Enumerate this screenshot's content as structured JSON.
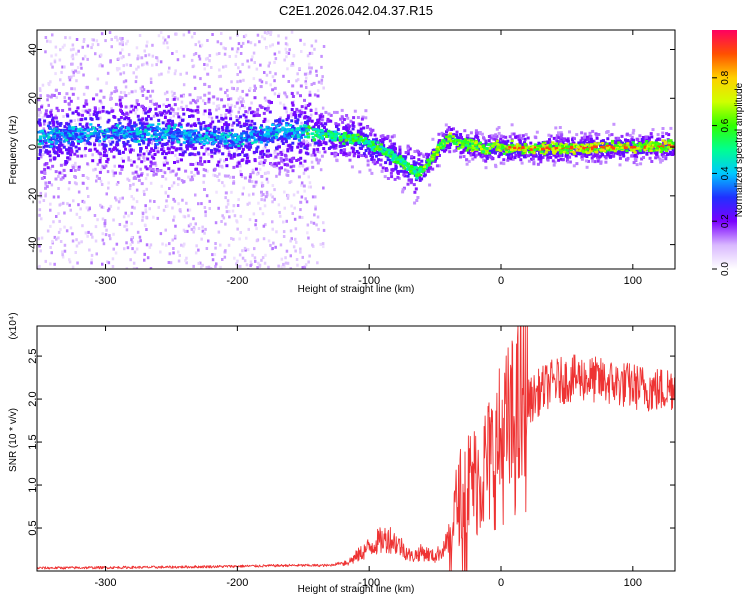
{
  "chart_data": [
    {
      "type": "heatmap",
      "title": "C2E1.2026.042.04.37.R15",
      "xlabel": "Height of straight line (km)",
      "ylabel": "Frequency (Hz)",
      "xlim": [
        -352,
        132
      ],
      "ylim": [
        -50,
        48
      ],
      "xticks": [
        -300,
        -200,
        -100,
        0,
        100
      ],
      "yticks": [
        -40,
        -20,
        0,
        20,
        40
      ],
      "colorbar": {
        "label": "Normalized spectral amplitude",
        "range": [
          0,
          1
        ],
        "ticks": [
          "0.0",
          "0.2",
          "0.4",
          "0.6",
          "0.8"
        ],
        "tick_values": [
          0.0,
          0.2,
          0.4,
          0.6,
          0.8
        ]
      },
      "ridge": {
        "x": [
          -350,
          -300,
          -250,
          -200,
          -170,
          -140,
          -110,
          -90,
          -75,
          -65,
          -60,
          -55,
          -50,
          -45,
          -40,
          -30,
          -20,
          -12,
          -5,
          0,
          50,
          132
        ],
        "freq_hz": [
          5,
          6,
          6,
          4,
          7,
          6,
          4,
          -1,
          -6,
          -10,
          -9,
          -5,
          -1,
          2,
          4,
          2,
          1,
          -1,
          1,
          0,
          0,
          1
        ]
      }
    },
    {
      "type": "line",
      "ylabel": "SNR (10 * v/v)",
      "xlabel": "Height of straight line (km)",
      "y_multiplier": "(x10⁴)",
      "xlim": [
        -352,
        132
      ],
      "ylim": [
        0,
        2.85
      ],
      "xticks": [
        -300,
        -200,
        -100,
        0,
        100
      ],
      "yticks": [
        0.5,
        1.0,
        1.5,
        2.0,
        2.5
      ],
      "ytick_labels": [
        "0.5",
        "1.0",
        "1.5",
        "2.0",
        "2.5"
      ],
      "color": "#ee3333",
      "envelope": {
        "x": [
          -352,
          -250,
          -200,
          -160,
          -130,
          -115,
          -105,
          -95,
          -85,
          -75,
          -68,
          -60,
          -50,
          -40,
          -35,
          -28,
          -20,
          -12,
          -5,
          2,
          10,
          20,
          30,
          40,
          60,
          80,
          100,
          120,
          132
        ],
        "value": [
          0.02,
          0.03,
          0.04,
          0.05,
          0.05,
          0.1,
          0.2,
          0.3,
          0.35,
          0.25,
          0.15,
          0.2,
          0.15,
          0.3,
          0.7,
          1.0,
          1.05,
          1.2,
          1.35,
          1.55,
          1.7,
          1.95,
          2.1,
          2.2,
          2.25,
          2.2,
          2.15,
          2.1,
          2.15
        ]
      }
    }
  ]
}
